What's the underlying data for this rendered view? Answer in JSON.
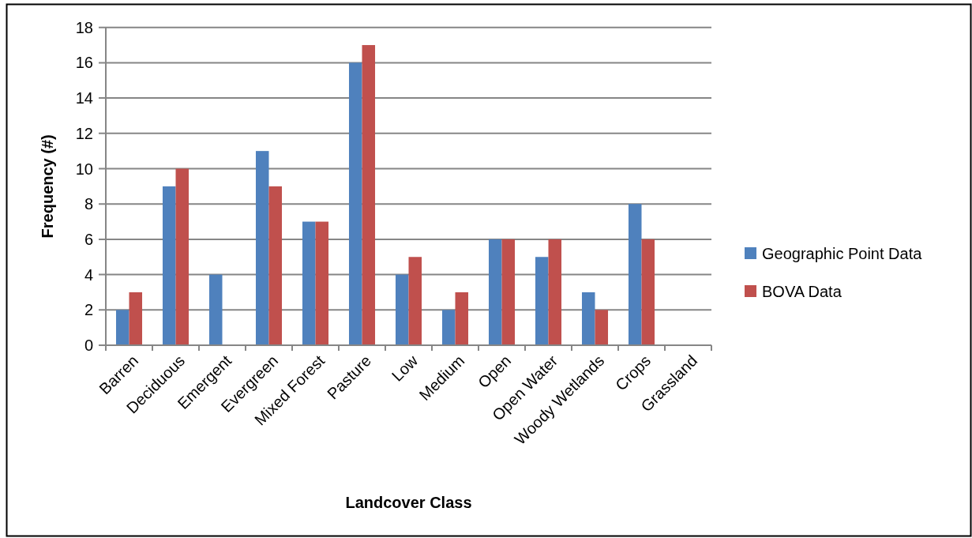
{
  "chart_data": {
    "type": "bar",
    "xlabel": "Landcover Class",
    "ylabel": "Frequency (#)",
    "categories": [
      "Barren",
      "Deciduous",
      "Emergent",
      "Evergreen",
      "Mixed Forest",
      "Pasture",
      "Low",
      "Medium",
      "Open",
      "Open Water",
      "Woody Wetlands",
      "Crops",
      "Grassland"
    ],
    "series": [
      {
        "name": "Geographic Point Data",
        "color": "#4f81bd",
        "values": [
          2,
          9,
          4,
          11,
          7,
          16,
          4,
          2,
          6,
          5,
          3,
          8,
          0
        ]
      },
      {
        "name": "BOVA Data",
        "color": "#c0504d",
        "values": [
          3,
          10,
          0,
          9,
          7,
          17,
          5,
          3,
          6,
          6,
          2,
          6,
          0
        ]
      }
    ],
    "ylim": [
      0,
      18
    ],
    "yticks": [
      0,
      2,
      4,
      6,
      8,
      10,
      12,
      14,
      16,
      18
    ],
    "grid": "y",
    "legend": "right"
  }
}
